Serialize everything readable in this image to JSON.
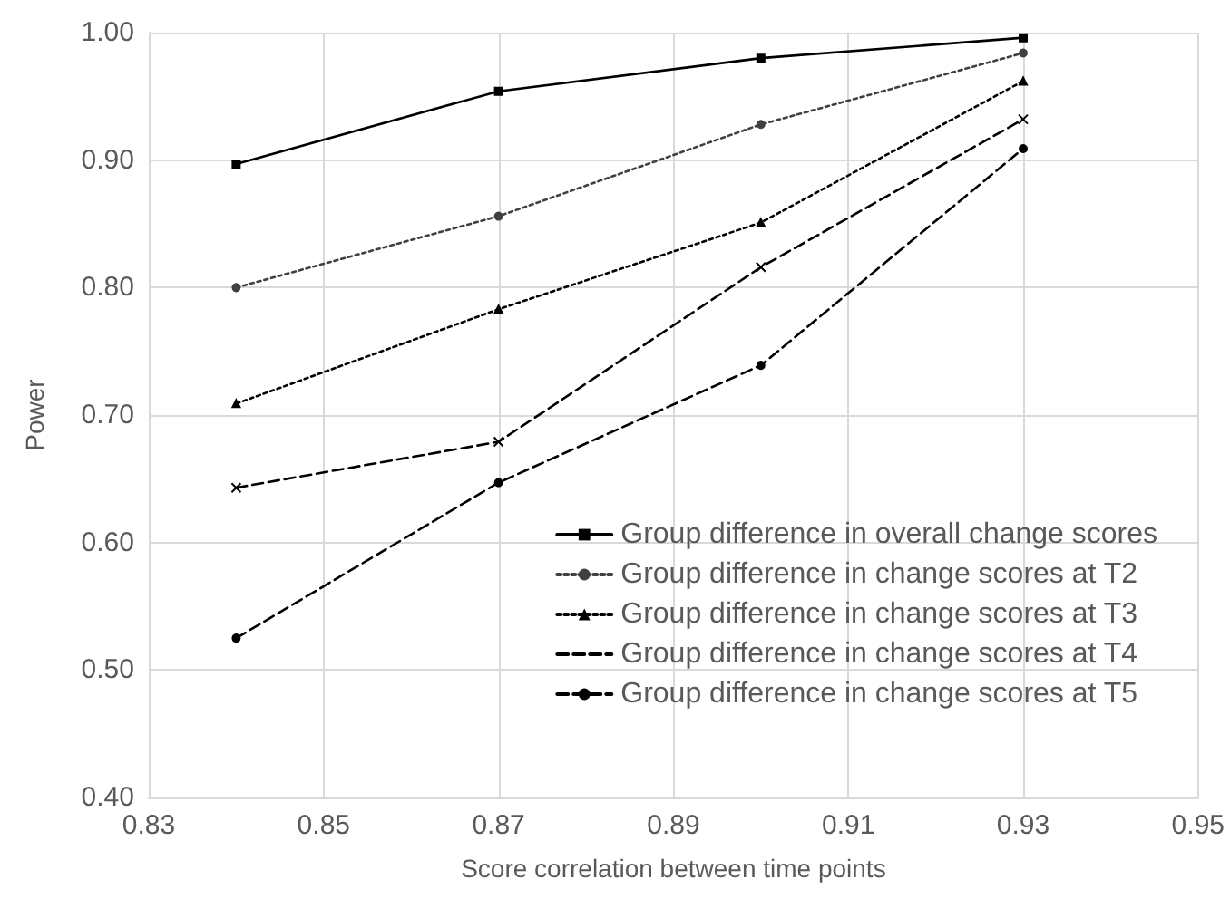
{
  "chart_data": {
    "type": "line",
    "xlabel": "Score correlation between time points",
    "ylabel": "Power",
    "x": [
      0.84,
      0.87,
      0.9,
      0.93
    ],
    "series": [
      {
        "name": "Group difference in overall change scores",
        "color": "#000000",
        "values": [
          0.897,
          0.954,
          0.98,
          0.996
        ],
        "line_style": "solid",
        "marker": "square"
      },
      {
        "name": "Group difference in change scores at T2",
        "color": "#404040",
        "values": [
          0.8,
          0.856,
          0.928,
          0.984
        ],
        "line_style": "dotted",
        "marker": "circle"
      },
      {
        "name": "Group difference in change scores at T3",
        "color": "#000000",
        "values": [
          0.709,
          0.783,
          0.851,
          0.962
        ],
        "line_style": "dotted",
        "marker": "triangle"
      },
      {
        "name": "Group difference in change scores at T4",
        "color": "#000000",
        "values": [
          0.643,
          0.679,
          0.816,
          0.932
        ],
        "line_style": "dashed",
        "marker": "cross"
      },
      {
        "name": "Group difference in change scores at T5",
        "color": "#000000",
        "values": [
          0.525,
          0.647,
          0.739,
          0.909
        ],
        "line_style": "dashed",
        "marker": "circle"
      }
    ],
    "xlim": [
      0.83,
      0.95
    ],
    "xticks": [
      0.83,
      0.85,
      0.87,
      0.89,
      0.91,
      0.93,
      0.95
    ],
    "ylim": [
      0.4,
      1.0
    ],
    "yticks": [
      {
        "value": 0.4,
        "label": "0.40"
      },
      {
        "value": 0.5,
        "label": "0.50"
      },
      {
        "value": 0.6,
        "label": "0.60"
      },
      {
        "value": 0.7,
        "label": "0.70"
      },
      {
        "value": 0.8,
        "label": "0.80"
      },
      {
        "value": 0.9,
        "label": "0.90"
      },
      {
        "value": 1,
        "label": "1.00"
      }
    ],
    "grid": true,
    "legend": "bottom right"
  }
}
